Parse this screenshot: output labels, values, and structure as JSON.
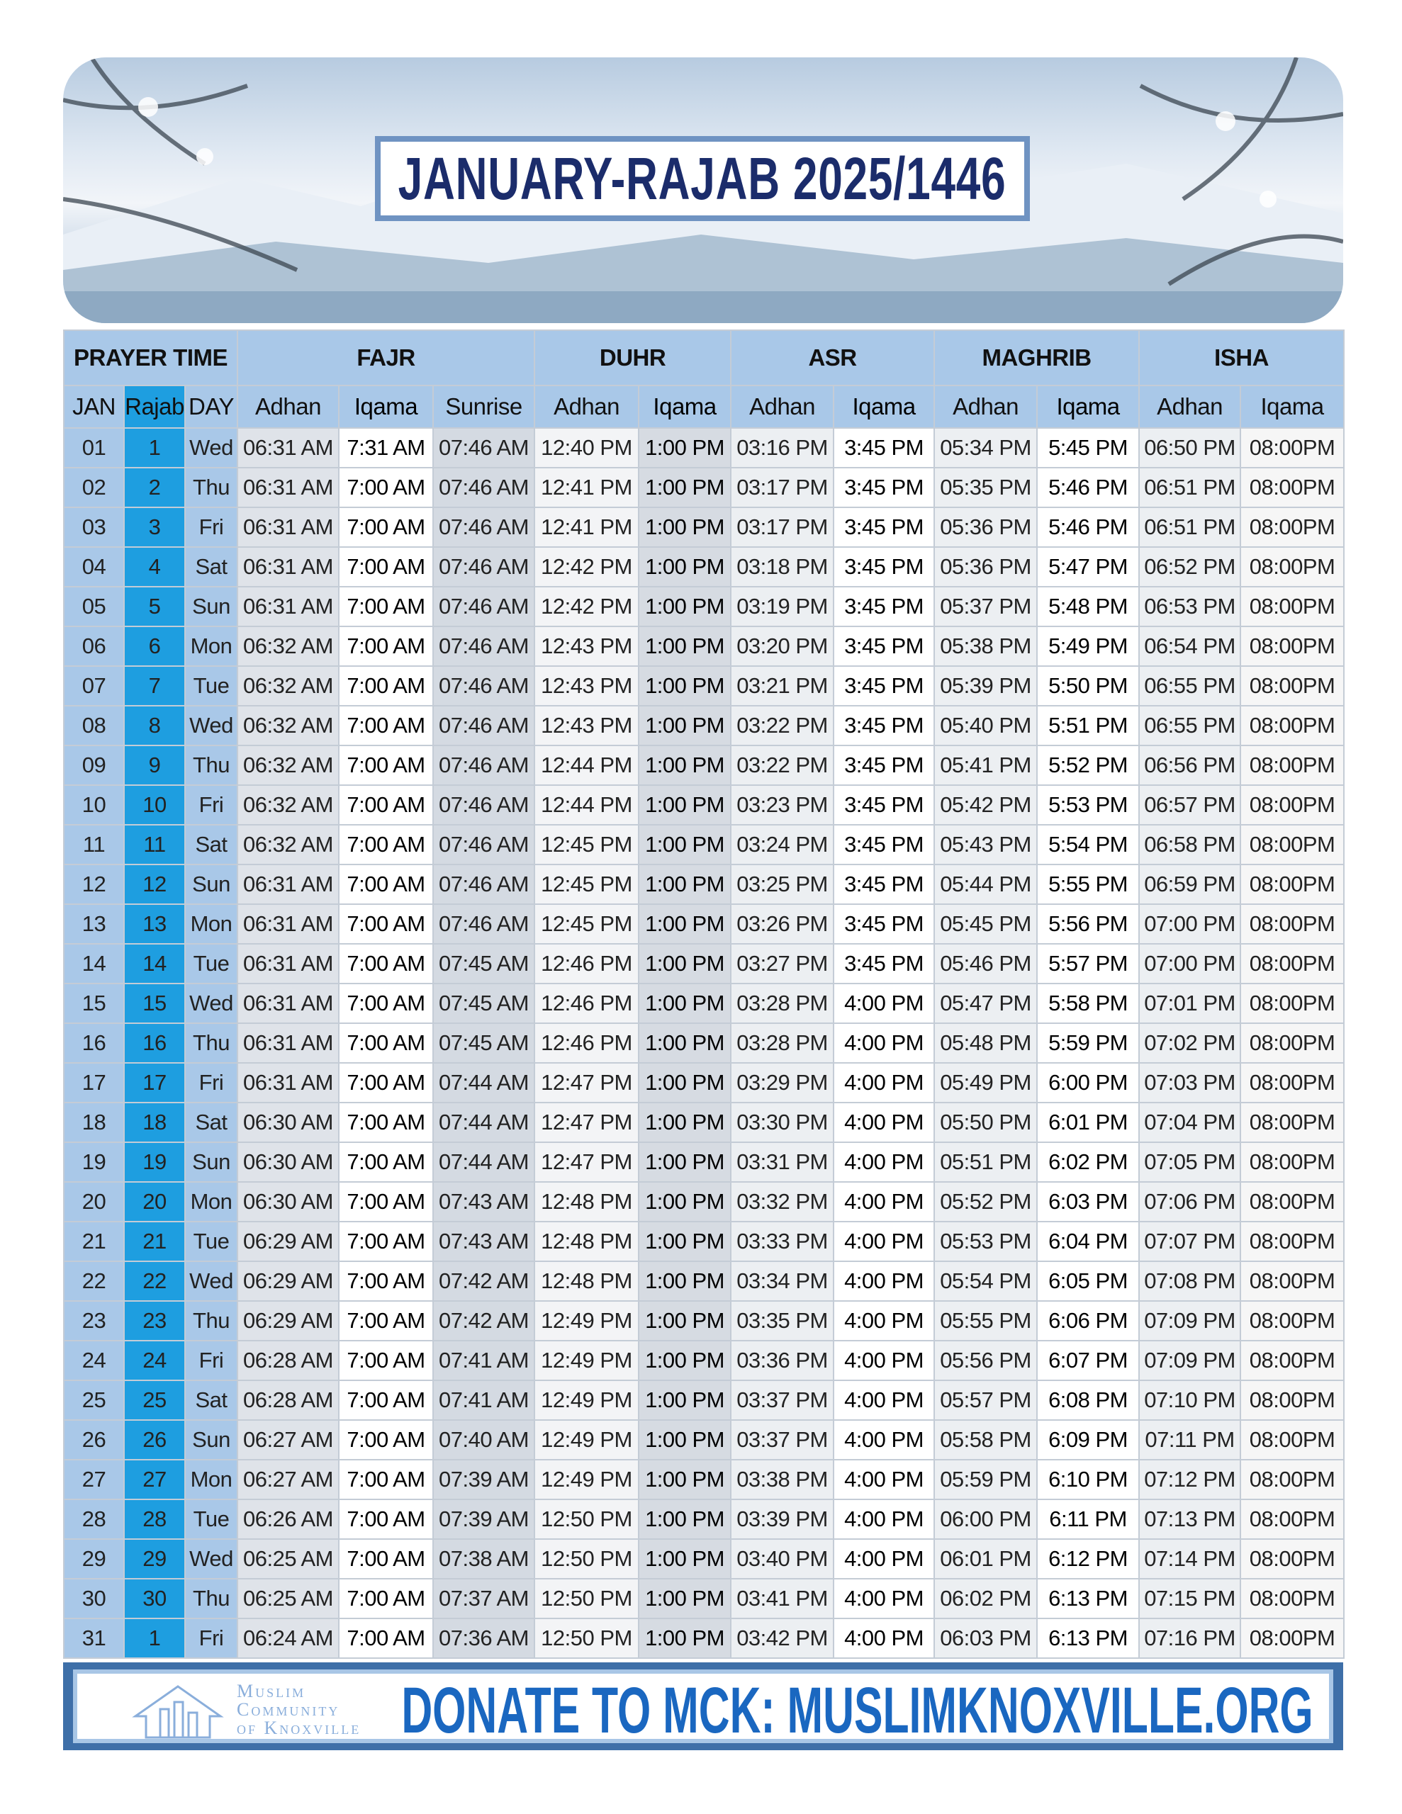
{
  "header": {
    "title": "JANUARY-RAJAB 2025/1446"
  },
  "table": {
    "group_headers": [
      "PRAYER TIME",
      "FAJR",
      "DUHR",
      "ASR",
      "MAGHRIB",
      "ISHA"
    ],
    "column_headers": [
      "JAN",
      "Rajab",
      "DAY",
      "Adhan",
      "Iqama",
      "Sunrise",
      "Adhan",
      "Iqama",
      "Adhan",
      "Iqama",
      "Adhan",
      "Iqama",
      "Adhan",
      "Iqama"
    ],
    "rows": [
      [
        "01",
        "1",
        "Wed",
        "06:31 AM",
        "7:31 AM",
        "07:46 AM",
        "12:40 PM",
        "1:00 PM",
        "03:16 PM",
        "3:45 PM",
        "05:34 PM",
        "5:45 PM",
        "06:50 PM",
        "08:00PM"
      ],
      [
        "02",
        "2",
        "Thu",
        "06:31 AM",
        "7:00 AM",
        "07:46 AM",
        "12:41 PM",
        "1:00 PM",
        "03:17 PM",
        "3:45 PM",
        "05:35 PM",
        "5:46 PM",
        "06:51 PM",
        "08:00PM"
      ],
      [
        "03",
        "3",
        "Fri",
        "06:31 AM",
        "7:00 AM",
        "07:46 AM",
        "12:41 PM",
        "1:00 PM",
        "03:17 PM",
        "3:45 PM",
        "05:36 PM",
        "5:46 PM",
        "06:51 PM",
        "08:00PM"
      ],
      [
        "04",
        "4",
        "Sat",
        "06:31 AM",
        "7:00 AM",
        "07:46 AM",
        "12:42 PM",
        "1:00 PM",
        "03:18 PM",
        "3:45 PM",
        "05:36 PM",
        "5:47 PM",
        "06:52 PM",
        "08:00PM"
      ],
      [
        "05",
        "5",
        "Sun",
        "06:31 AM",
        "7:00 AM",
        "07:46 AM",
        "12:42 PM",
        "1:00 PM",
        "03:19 PM",
        "3:45 PM",
        "05:37 PM",
        "5:48 PM",
        "06:53 PM",
        "08:00PM"
      ],
      [
        "06",
        "6",
        "Mon",
        "06:32 AM",
        "7:00 AM",
        "07:46 AM",
        "12:43 PM",
        "1:00 PM",
        "03:20 PM",
        "3:45 PM",
        "05:38 PM",
        "5:49 PM",
        "06:54 PM",
        "08:00PM"
      ],
      [
        "07",
        "7",
        "Tue",
        "06:32 AM",
        "7:00 AM",
        "07:46 AM",
        "12:43 PM",
        "1:00 PM",
        "03:21 PM",
        "3:45 PM",
        "05:39 PM",
        "5:50 PM",
        "06:55 PM",
        "08:00PM"
      ],
      [
        "08",
        "8",
        "Wed",
        "06:32 AM",
        "7:00 AM",
        "07:46 AM",
        "12:43 PM",
        "1:00 PM",
        "03:22 PM",
        "3:45 PM",
        "05:40 PM",
        "5:51 PM",
        "06:55 PM",
        "08:00PM"
      ],
      [
        "09",
        "9",
        "Thu",
        "06:32 AM",
        "7:00 AM",
        "07:46 AM",
        "12:44 PM",
        "1:00 PM",
        "03:22 PM",
        "3:45 PM",
        "05:41 PM",
        "5:52 PM",
        "06:56 PM",
        "08:00PM"
      ],
      [
        "10",
        "10",
        "Fri",
        "06:32 AM",
        "7:00 AM",
        "07:46 AM",
        "12:44 PM",
        "1:00 PM",
        "03:23 PM",
        "3:45 PM",
        "05:42 PM",
        "5:53 PM",
        "06:57 PM",
        "08:00PM"
      ],
      [
        "11",
        "11",
        "Sat",
        "06:32 AM",
        "7:00 AM",
        "07:46 AM",
        "12:45 PM",
        "1:00 PM",
        "03:24 PM",
        "3:45 PM",
        "05:43 PM",
        "5:54 PM",
        "06:58 PM",
        "08:00PM"
      ],
      [
        "12",
        "12",
        "Sun",
        "06:31 AM",
        "7:00 AM",
        "07:46 AM",
        "12:45 PM",
        "1:00 PM",
        "03:25 PM",
        "3:45 PM",
        "05:44 PM",
        "5:55 PM",
        "06:59 PM",
        "08:00PM"
      ],
      [
        "13",
        "13",
        "Mon",
        "06:31 AM",
        "7:00 AM",
        "07:46 AM",
        "12:45 PM",
        "1:00 PM",
        "03:26 PM",
        "3:45 PM",
        "05:45 PM",
        "5:56 PM",
        "07:00 PM",
        "08:00PM"
      ],
      [
        "14",
        "14",
        "Tue",
        "06:31 AM",
        "7:00 AM",
        "07:45 AM",
        "12:46 PM",
        "1:00 PM",
        "03:27 PM",
        "3:45 PM",
        "05:46 PM",
        "5:57 PM",
        "07:00 PM",
        "08:00PM"
      ],
      [
        "15",
        "15",
        "Wed",
        "06:31 AM",
        "7:00 AM",
        "07:45 AM",
        "12:46 PM",
        "1:00 PM",
        "03:28 PM",
        "4:00 PM",
        "05:47 PM",
        "5:58 PM",
        "07:01 PM",
        "08:00PM"
      ],
      [
        "16",
        "16",
        "Thu",
        "06:31 AM",
        "7:00 AM",
        "07:45 AM",
        "12:46 PM",
        "1:00 PM",
        "03:28 PM",
        "4:00 PM",
        "05:48 PM",
        "5:59 PM",
        "07:02 PM",
        "08:00PM"
      ],
      [
        "17",
        "17",
        "Fri",
        "06:31 AM",
        "7:00 AM",
        "07:44 AM",
        "12:47 PM",
        "1:00 PM",
        "03:29 PM",
        "4:00 PM",
        "05:49 PM",
        "6:00 PM",
        "07:03 PM",
        "08:00PM"
      ],
      [
        "18",
        "18",
        "Sat",
        "06:30 AM",
        "7:00 AM",
        "07:44 AM",
        "12:47 PM",
        "1:00 PM",
        "03:30 PM",
        "4:00 PM",
        "05:50 PM",
        "6:01 PM",
        "07:04 PM",
        "08:00PM"
      ],
      [
        "19",
        "19",
        "Sun",
        "06:30 AM",
        "7:00 AM",
        "07:44 AM",
        "12:47 PM",
        "1:00 PM",
        "03:31 PM",
        "4:00 PM",
        "05:51 PM",
        "6:02 PM",
        "07:05 PM",
        "08:00PM"
      ],
      [
        "20",
        "20",
        "Mon",
        "06:30 AM",
        "7:00 AM",
        "07:43 AM",
        "12:48 PM",
        "1:00 PM",
        "03:32 PM",
        "4:00 PM",
        "05:52 PM",
        "6:03 PM",
        "07:06 PM",
        "08:00PM"
      ],
      [
        "21",
        "21",
        "Tue",
        "06:29 AM",
        "7:00 AM",
        "07:43 AM",
        "12:48 PM",
        "1:00 PM",
        "03:33 PM",
        "4:00 PM",
        "05:53 PM",
        "6:04 PM",
        "07:07 PM",
        "08:00PM"
      ],
      [
        "22",
        "22",
        "Wed",
        "06:29 AM",
        "7:00 AM",
        "07:42 AM",
        "12:48 PM",
        "1:00 PM",
        "03:34 PM",
        "4:00 PM",
        "05:54 PM",
        "6:05 PM",
        "07:08 PM",
        "08:00PM"
      ],
      [
        "23",
        "23",
        "Thu",
        "06:29 AM",
        "7:00 AM",
        "07:42 AM",
        "12:49 PM",
        "1:00 PM",
        "03:35 PM",
        "4:00 PM",
        "05:55 PM",
        "6:06 PM",
        "07:09 PM",
        "08:00PM"
      ],
      [
        "24",
        "24",
        "Fri",
        "06:28 AM",
        "7:00 AM",
        "07:41 AM",
        "12:49 PM",
        "1:00 PM",
        "03:36 PM",
        "4:00 PM",
        "05:56 PM",
        "6:07 PM",
        "07:09 PM",
        "08:00PM"
      ],
      [
        "25",
        "25",
        "Sat",
        "06:28 AM",
        "7:00 AM",
        "07:41 AM",
        "12:49 PM",
        "1:00 PM",
        "03:37 PM",
        "4:00 PM",
        "05:57 PM",
        "6:08 PM",
        "07:10 PM",
        "08:00PM"
      ],
      [
        "26",
        "26",
        "Sun",
        "06:27 AM",
        "7:00 AM",
        "07:40 AM",
        "12:49 PM",
        "1:00 PM",
        "03:37 PM",
        "4:00 PM",
        "05:58 PM",
        "6:09 PM",
        "07:11 PM",
        "08:00PM"
      ],
      [
        "27",
        "27",
        "Mon",
        "06:27 AM",
        "7:00 AM",
        "07:39 AM",
        "12:49 PM",
        "1:00 PM",
        "03:38 PM",
        "4:00 PM",
        "05:59 PM",
        "6:10 PM",
        "07:12 PM",
        "08:00PM"
      ],
      [
        "28",
        "28",
        "Tue",
        "06:26 AM",
        "7:00 AM",
        "07:39 AM",
        "12:50 PM",
        "1:00 PM",
        "03:39 PM",
        "4:00 PM",
        "06:00 PM",
        "6:11 PM",
        "07:13 PM",
        "08:00PM"
      ],
      [
        "29",
        "29",
        "Wed",
        "06:25 AM",
        "7:00 AM",
        "07:38 AM",
        "12:50 PM",
        "1:00 PM",
        "03:40 PM",
        "4:00 PM",
        "06:01 PM",
        "6:12 PM",
        "07:14 PM",
        "08:00PM"
      ],
      [
        "30",
        "30",
        "Thu",
        "06:25 AM",
        "7:00 AM",
        "07:37 AM",
        "12:50 PM",
        "1:00 PM",
        "03:41 PM",
        "4:00 PM",
        "06:02 PM",
        "6:13 PM",
        "07:15 PM",
        "08:00PM"
      ],
      [
        "31",
        "1",
        "Fri",
        "06:24 AM",
        "7:00 AM",
        "07:36 AM",
        "12:50 PM",
        "1:00 PM",
        "03:42 PM",
        "4:00 PM",
        "06:03 PM",
        "6:13 PM",
        "07:16 PM",
        "08:00PM"
      ]
    ]
  },
  "footer": {
    "logo_lines": [
      "Muslim",
      "Community",
      "of Knoxville"
    ],
    "donate": "DONATE TO MCK: MUSLIMKNOXVILLE.ORG"
  }
}
